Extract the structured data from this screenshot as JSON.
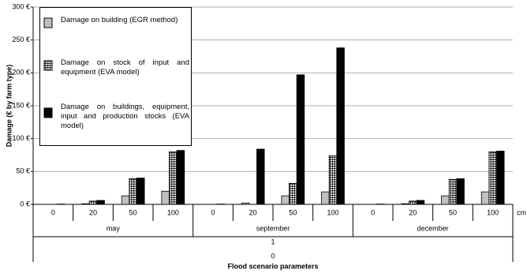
{
  "chart_data": {
    "type": "bar",
    "ylabel": "Damage (€ by farm type)",
    "xlabel": "Flood scenario parameters",
    "x_unit": "cm",
    "categories": [
      "0",
      "20",
      "50",
      "100",
      "0",
      "20",
      "50",
      "100",
      "0",
      "20",
      "50",
      "100"
    ],
    "groups": [
      "may",
      "september",
      "december"
    ],
    "level3": "1",
    "level4": "0",
    "series": [
      {
        "name": "Damage on building (EGR method)",
        "color": "#c0c0c0",
        "values": [
          0,
          1,
          13,
          20,
          0,
          2,
          13,
          19,
          0,
          1,
          13,
          19
        ]
      },
      {
        "name": "Damage on stock of input and equipment (EVA model)",
        "color": "#000000",
        "pattern": "checker",
        "values": [
          0,
          5,
          39,
          80,
          0,
          0,
          32,
          74,
          0,
          5,
          38,
          80
        ]
      },
      {
        "name": "Damage on buildings, equipment, input and production stocks (EVA model)",
        "color": "#000000",
        "values": [
          0.5,
          6,
          40,
          82,
          0.5,
          84,
          197,
          238,
          0.5,
          6,
          39,
          81
        ]
      }
    ],
    "ylim": [
      0,
      300
    ],
    "yticks": [
      {
        "value": 0,
        "label": "0 €"
      },
      {
        "value": 50,
        "label": "50 €"
      },
      {
        "value": 100,
        "label": "100 €"
      },
      {
        "value": 150,
        "label": "150 €"
      },
      {
        "value": 200,
        "label": "200 €"
      },
      {
        "value": 250,
        "label": "250 €"
      },
      {
        "value": 300,
        "label": "300 €"
      }
    ],
    "grid": true
  }
}
